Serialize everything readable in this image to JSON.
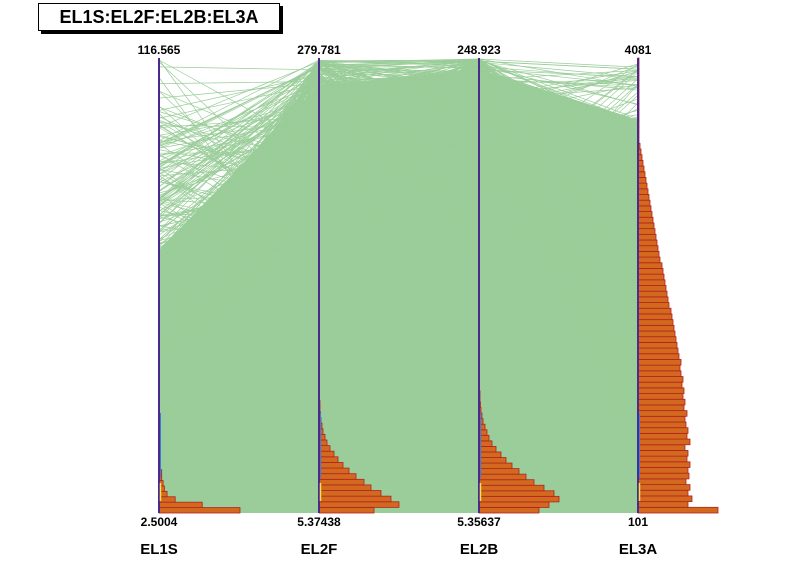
{
  "title": "EL1S:EL2F:EL2B:EL3A",
  "colors": {
    "line": "#9acd99",
    "axis": "#4b2a8f",
    "hist_fill": "#d2691e",
    "hist_stroke": "#b22222",
    "axis_accent_blue": "#3a7fd5",
    "axis_accent_yellow": "#f0e442"
  },
  "chart_data": {
    "type": "parallel_coordinates",
    "title": "EL1S:EL2F:EL2B:EL3A",
    "axes": [
      {
        "name": "EL1S",
        "min": "2.5004",
        "max": "116.565",
        "min_value": 2.5004,
        "max_value": 116.565,
        "histogram": [
          60,
          32,
          12,
          6,
          4,
          3,
          2,
          2,
          1,
          1,
          1,
          1,
          0.5,
          0.5,
          0,
          0,
          0,
          0,
          0,
          0,
          0,
          0,
          0,
          0,
          0,
          0,
          0,
          0,
          0,
          0,
          0,
          0,
          0,
          0,
          0,
          0,
          0,
          0,
          0,
          0,
          0,
          0,
          0,
          0,
          0,
          0,
          0,
          0,
          0,
          0,
          0,
          0,
          0,
          0,
          0,
          0,
          0,
          0,
          0,
          0,
          0,
          0,
          0,
          0,
          0,
          0,
          0,
          0,
          0,
          0,
          0,
          0,
          0,
          0,
          0,
          0,
          0,
          0,
          0,
          0,
          0,
          0,
          0,
          0
        ]
      },
      {
        "name": "EL2F",
        "min": "5.37438",
        "max": "279.781",
        "min_value": 5.37438,
        "max_value": 279.781,
        "histogram": [
          55,
          80,
          72,
          62,
          52,
          45,
          37,
          30,
          24,
          19,
          15,
          11,
          8,
          6,
          4,
          3,
          2,
          1.5,
          1,
          1,
          0.5,
          0.5,
          0.5,
          0,
          0,
          0,
          0,
          0,
          0,
          0,
          0,
          0,
          0,
          0,
          0,
          0,
          0,
          0,
          0,
          0,
          0,
          0,
          0,
          0,
          0,
          0,
          0,
          0,
          0,
          0,
          0,
          0,
          0,
          0,
          0,
          0,
          0,
          0,
          0,
          0,
          0,
          0,
          0,
          0,
          0,
          0,
          0,
          0,
          0,
          0,
          0,
          0,
          0,
          0,
          0,
          0,
          0,
          0,
          0,
          0,
          0
        ]
      },
      {
        "name": "EL2B",
        "min": "5.35637",
        "max": "248.923",
        "min_value": 5.35637,
        "max_value": 248.923,
        "histogram": [
          60,
          70,
          80,
          75,
          65,
          55,
          47,
          40,
          33,
          27,
          22,
          17,
          13,
          10,
          8,
          6,
          4,
          3,
          2,
          1.5,
          1,
          1,
          0.5,
          0.5,
          0,
          0,
          0,
          0,
          0,
          0,
          0,
          0,
          0,
          0,
          0,
          0,
          0,
          0,
          0,
          0,
          0,
          0,
          0,
          0,
          0,
          0,
          0,
          0,
          0,
          0,
          0,
          0,
          0,
          0,
          0,
          0,
          0,
          0,
          0,
          0,
          0,
          0,
          0,
          0,
          0,
          0,
          0,
          0,
          0,
          0,
          0,
          0,
          0,
          0,
          0,
          0,
          0,
          0,
          0,
          0,
          0,
          0
        ]
      },
      {
        "name": "EL3A",
        "min": "101",
        "max": "4081",
        "min_value": 101,
        "max_value": 4081,
        "histogram": [
          80,
          50,
          54,
          50,
          52,
          48,
          51,
          50,
          52,
          49,
          50,
          47,
          52,
          49,
          50,
          48,
          47,
          49,
          46,
          47,
          45,
          46,
          44,
          45,
          43,
          42,
          43,
          41,
          40,
          39,
          38,
          37,
          36,
          35,
          34,
          33,
          31,
          30,
          29,
          28,
          27,
          26,
          25,
          24,
          22,
          21,
          20,
          19,
          18,
          17,
          16,
          15,
          14,
          13,
          12,
          11,
          10,
          9,
          8,
          7,
          6,
          5,
          4,
          3,
          2,
          1,
          1,
          1,
          1,
          1,
          1,
          1,
          1,
          1,
          1,
          1,
          1,
          1,
          1,
          1
        ]
      }
    ]
  }
}
